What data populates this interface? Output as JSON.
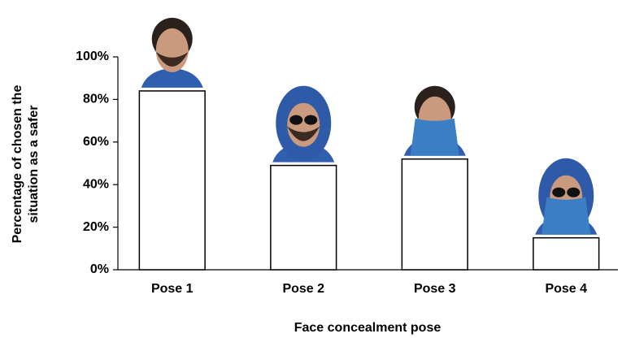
{
  "chart_data": {
    "type": "bar",
    "x_label": "Face concealment pose",
    "y_label": [
      "Percentage of chosen the",
      "situation as a safer"
    ],
    "categories": [
      "Pose 1",
      "Pose 2",
      "Pose 3",
      "Pose 4"
    ],
    "values": [
      84,
      49,
      52,
      15
    ],
    "color": "#ffffff",
    "ylim": [
      0,
      100
    ],
    "yticks": [
      {
        "value": 0,
        "label": "0%"
      },
      {
        "value": 20,
        "label": "20%"
      },
      {
        "value": 40,
        "label": "40%"
      },
      {
        "value": 60,
        "label": "60%"
      },
      {
        "value": 80,
        "label": "80%"
      },
      {
        "value": 100,
        "label": "100%"
      }
    ],
    "grid": false
  }
}
